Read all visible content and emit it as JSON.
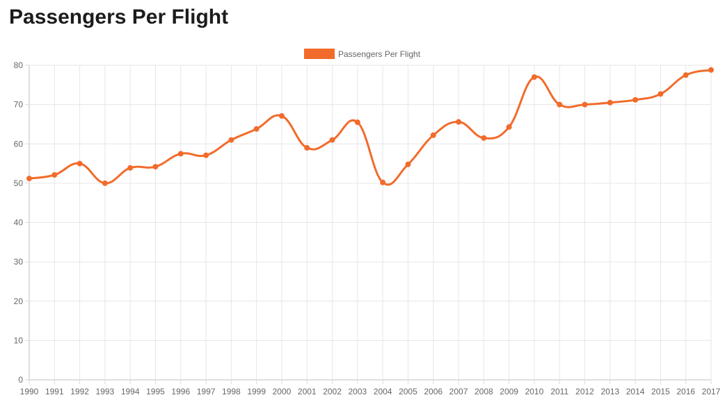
{
  "page": {
    "title": "Passengers Per Flight"
  },
  "chart_data": {
    "type": "line",
    "title": "Passengers Per Flight",
    "xlabel": "",
    "ylabel": "",
    "categories": [
      "1990",
      "1991",
      "1992",
      "1993",
      "1994",
      "1995",
      "1996",
      "1997",
      "1998",
      "1999",
      "2000",
      "2001",
      "2002",
      "2003",
      "2004",
      "2005",
      "2006",
      "2007",
      "2008",
      "2009",
      "2010",
      "2011",
      "2012",
      "2013",
      "2014",
      "2015",
      "2016",
      "2017"
    ],
    "series": [
      {
        "name": "Passengers Per Flight",
        "color": "#f26b2b",
        "values": [
          51.2,
          52.1,
          55.0,
          50.0,
          53.9,
          54.2,
          57.5,
          57.1,
          61.0,
          63.8,
          67.1,
          59.0,
          61.0,
          65.5,
          50.2,
          54.8,
          62.2,
          65.6,
          61.5,
          64.3,
          77.0,
          70.0,
          70.0,
          70.5,
          71.2,
          72.7,
          77.5,
          78.8
        ]
      }
    ],
    "ylim": [
      0,
      80
    ],
    "yticks": [
      0,
      10,
      20,
      30,
      40,
      50,
      60,
      70,
      80
    ],
    "grid": true,
    "legend_position": "top-center",
    "line_style": "smooth"
  }
}
